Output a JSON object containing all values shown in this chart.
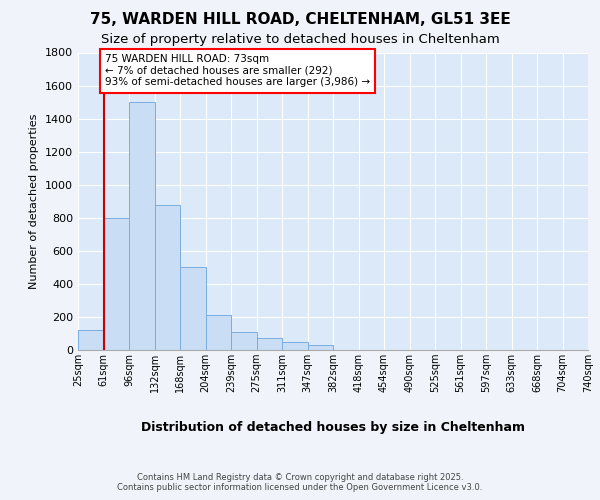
{
  "title_line1": "75, WARDEN HILL ROAD, CHELTENHAM, GL51 3EE",
  "title_line2": "Size of property relative to detached houses in Cheltenham",
  "xlabel": "Distribution of detached houses by size in Cheltenham",
  "ylabel": "Number of detached properties",
  "bar_values": [
    120,
    800,
    1500,
    880,
    500,
    210,
    110,
    70,
    50,
    30,
    0,
    0,
    0,
    0,
    0,
    0,
    0,
    0,
    0,
    0
  ],
  "categories": [
    "25sqm",
    "61sqm",
    "96sqm",
    "132sqm",
    "168sqm",
    "204sqm",
    "239sqm",
    "275sqm",
    "311sqm",
    "347sqm",
    "382sqm",
    "418sqm",
    "454sqm",
    "490sqm",
    "525sqm",
    "561sqm",
    "597sqm",
    "633sqm",
    "668sqm",
    "704sqm",
    "740sqm"
  ],
  "bar_color": "#c9ddf5",
  "bar_edge_color": "#7aade0",
  "fig_bg_color": "#f0f4fa",
  "plot_bg_color": "#dce9f8",
  "grid_color": "#ffffff",
  "vline_color": "#cc0000",
  "vline_x": 1.0,
  "annotation_text": "75 WARDEN HILL ROAD: 73sqm\n← 7% of detached houses are smaller (292)\n93% of semi-detached houses are larger (3,986) →",
  "ylim": [
    0,
    1800
  ],
  "yticks": [
    0,
    200,
    400,
    600,
    800,
    1000,
    1200,
    1400,
    1600,
    1800
  ],
  "footer1": "Contains HM Land Registry data © Crown copyright and database right 2025.",
  "footer2": "Contains public sector information licensed under the Open Government Licence v3.0."
}
